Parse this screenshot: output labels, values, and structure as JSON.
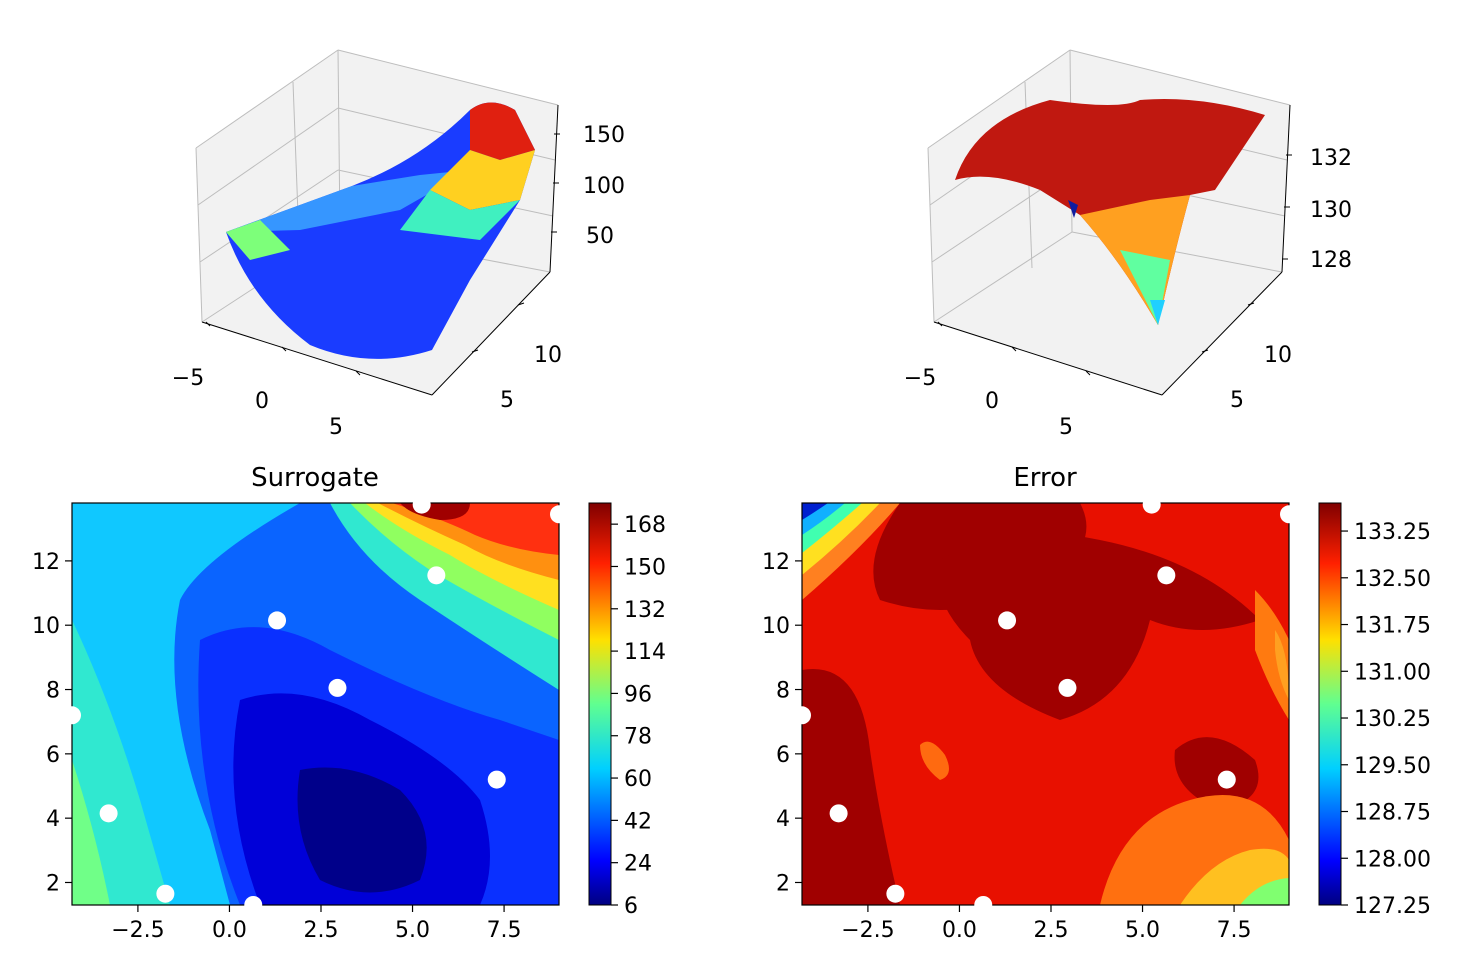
{
  "chart_data": [
    {
      "type": "surface3d",
      "title": "",
      "xticks": [
        "−5",
        "0",
        "5"
      ],
      "yticks": [
        "5",
        "10"
      ],
      "zticks": [
        "50",
        "100",
        "150"
      ],
      "xlim": [
        -5,
        10
      ],
      "ylim": [
        0,
        15
      ],
      "zlim": [
        0,
        180
      ],
      "colormap": "jet",
      "description_of_surface": "trough low in the middle, rising to a peak near x=5, y=13",
      "grid": true
    },
    {
      "type": "surface3d",
      "title": "",
      "xticks": [
        "−5",
        "0",
        "5"
      ],
      "yticks": [
        "5",
        "10"
      ],
      "zticks": [
        "128",
        "130",
        "132"
      ],
      "xlim": [
        -5,
        10
      ],
      "ylim": [
        0,
        15
      ],
      "zlim": [
        127,
        133.5
      ],
      "colormap": "jet",
      "grid": true
    },
    {
      "type": "contour",
      "title": "Surrogate",
      "xticks": [
        "−2.5",
        "0.0",
        "2.5",
        "5.0",
        "7.5"
      ],
      "yticks": [
        "2",
        "4",
        "6",
        "8",
        "10",
        "12"
      ],
      "xlim": [
        -4.3,
        9.0
      ],
      "ylim": [
        1.3,
        13.8
      ],
      "colorbar_ticks": [
        "6",
        "24",
        "42",
        "60",
        "78",
        "96",
        "114",
        "132",
        "150",
        "168"
      ],
      "colorbar_range": [
        6,
        177
      ],
      "colormap": "jet",
      "points": [
        {
          "x": -4.3,
          "y": 7.2
        },
        {
          "x": -3.3,
          "y": 4.15
        },
        {
          "x": -1.75,
          "y": 1.65
        },
        {
          "x": 0.65,
          "y": 1.3
        },
        {
          "x": 1.3,
          "y": 10.15
        },
        {
          "x": 2.95,
          "y": 8.05
        },
        {
          "x": 5.25,
          "y": 13.75
        },
        {
          "x": 5.65,
          "y": 11.55
        },
        {
          "x": 7.3,
          "y": 5.2
        },
        {
          "x": 9.0,
          "y": 13.45
        }
      ]
    },
    {
      "type": "contour",
      "title": "Error",
      "xticks": [
        "−2.5",
        "0.0",
        "2.5",
        "5.0",
        "7.5"
      ],
      "yticks": [
        "2",
        "4",
        "6",
        "8",
        "10",
        "12"
      ],
      "xlim": [
        -4.3,
        9.0
      ],
      "ylim": [
        1.3,
        13.8
      ],
      "colorbar_ticks": [
        "127.25",
        "128.00",
        "128.75",
        "129.50",
        "130.25",
        "131.00",
        "131.75",
        "132.50",
        "133.25"
      ],
      "colorbar_range": [
        127.25,
        133.7
      ],
      "colormap": "jet",
      "points": [
        {
          "x": -4.3,
          "y": 7.2
        },
        {
          "x": -3.3,
          "y": 4.15
        },
        {
          "x": -1.75,
          "y": 1.65
        },
        {
          "x": 0.65,
          "y": 1.3
        },
        {
          "x": 1.3,
          "y": 10.15
        },
        {
          "x": 2.95,
          "y": 8.05
        },
        {
          "x": 5.25,
          "y": 13.75
        },
        {
          "x": 5.65,
          "y": 11.55
        },
        {
          "x": 7.3,
          "y": 5.2
        },
        {
          "x": 9.0,
          "y": 13.45
        }
      ]
    }
  ]
}
